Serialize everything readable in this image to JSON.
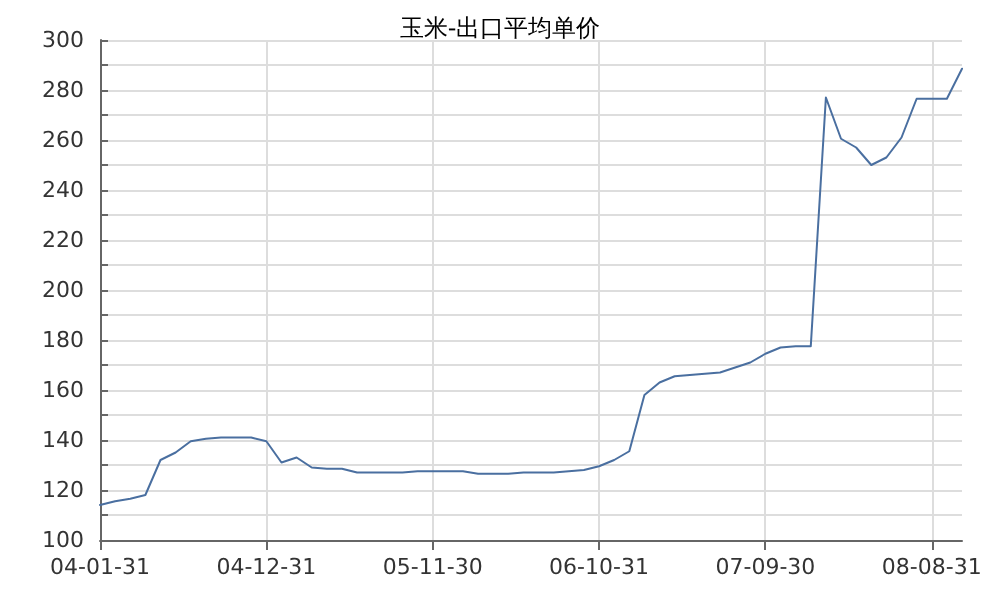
{
  "chart_data": {
    "type": "line",
    "title": "玉米-出口平均单价",
    "categories": [
      "04-01-31",
      null,
      null,
      null,
      null,
      null,
      null,
      null,
      null,
      null,
      null,
      "04-12-31",
      null,
      null,
      null,
      null,
      null,
      null,
      null,
      null,
      null,
      null,
      "05-11-30",
      null,
      null,
      null,
      null,
      null,
      null,
      null,
      null,
      null,
      null,
      "06-10-31",
      null,
      null,
      null,
      null,
      null,
      null,
      null,
      null,
      null,
      null,
      "07-09-30",
      null,
      null,
      null,
      null,
      null,
      null,
      null,
      null,
      null,
      null,
      "08-08-31",
      null,
      null
    ],
    "series": [
      {
        "color": "#4a6fa0",
        "values": [
          114,
          115.5,
          116.5,
          118,
          132,
          135,
          139.5,
          140.5,
          141,
          141,
          141,
          139.5,
          131,
          133,
          129,
          128.5,
          128.5,
          127,
          127,
          127,
          127,
          127.5,
          127.5,
          127.5,
          127.5,
          126.5,
          126.5,
          126.5,
          127,
          127,
          127,
          127.5,
          128,
          129.5,
          132,
          135.5,
          158,
          163,
          165.5,
          166,
          166.5,
          167,
          169,
          171,
          174.5,
          177,
          177.5,
          177.5,
          277,
          260.5,
          257,
          250,
          253,
          261,
          276.5,
          276.5,
          276.5,
          288.5
        ]
      }
    ],
    "ylim": [
      100,
      300
    ],
    "yticks": [
      100,
      120,
      140,
      160,
      180,
      200,
      220,
      240,
      260,
      280,
      300
    ],
    "grid": true,
    "marker": "none",
    "line_style": "solid"
  }
}
